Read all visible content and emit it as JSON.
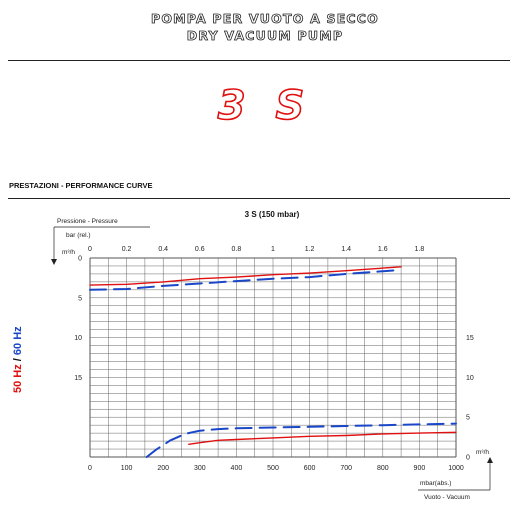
{
  "header": {
    "title_it": "POMPA PER VUOTO A SECCO",
    "title_en": "DRY VACUUM PUMP",
    "model": "3 S"
  },
  "section_title": "PRESTAZIONI - PERFORMANCE CURVE",
  "frequency": {
    "hz50": "50 Hz",
    "separator": "/",
    "hz60": "60 Hz",
    "color50": "#e01010",
    "color60": "#1a47c8"
  },
  "chart_data": {
    "type": "line",
    "title": "3 S (150 mbar)",
    "top_axis": {
      "label_pressure": "Pressione - Pressure",
      "label_unit": "bar (rel.)",
      "ticks": [
        "0",
        "0.2",
        "0.4",
        "0.6",
        "0.8",
        "1",
        "1.2",
        "1.4",
        "1.6",
        "1.8"
      ],
      "range": [
        0,
        2.0
      ]
    },
    "bottom_axis": {
      "label_unit": "mbar(abs.)",
      "label_vacuum": "Vuoto - Vacuum",
      "ticks": [
        "0",
        "100",
        "200",
        "300",
        "400",
        "500",
        "600",
        "700",
        "800",
        "900",
        "1000"
      ],
      "range": [
        0,
        1000
      ]
    },
    "left_axis": {
      "unit": "m³/h",
      "ticks": [
        "0",
        "5",
        "10",
        "15"
      ]
    },
    "right_axis": {
      "unit": "m³/h",
      "ticks": [
        "15",
        "10",
        "5",
        "0"
      ]
    },
    "series": [
      {
        "name": "50 Hz",
        "panel": "pressure",
        "style": "solid",
        "color": "#e01010",
        "x": [
          0,
          0.2,
          0.4,
          0.6,
          0.8,
          1.0,
          1.2,
          1.4,
          1.7
        ],
        "y": [
          3.4,
          3.3,
          3.0,
          2.6,
          2.4,
          2.1,
          1.9,
          1.6,
          1.1
        ]
      },
      {
        "name": "60 Hz",
        "panel": "pressure",
        "style": "dashed",
        "color": "#1a47c8",
        "x": [
          0,
          0.2,
          0.4,
          0.6,
          0.8,
          1.0,
          1.2,
          1.4,
          1.7
        ],
        "y": [
          4.0,
          3.9,
          3.5,
          3.2,
          2.9,
          2.6,
          2.4,
          2.0,
          1.5
        ]
      },
      {
        "name": "50 Hz",
        "panel": "vacuum",
        "style": "solid",
        "color": "#e01010",
        "x": [
          270,
          300,
          350,
          400,
          500,
          600,
          700,
          800,
          900,
          1000
        ],
        "y": [
          1.6,
          1.8,
          2.1,
          2.2,
          2.4,
          2.6,
          2.7,
          2.9,
          3.0,
          3.1
        ]
      },
      {
        "name": "60 Hz",
        "panel": "vacuum",
        "style": "dashed",
        "color": "#1a47c8",
        "x": [
          155,
          180,
          220,
          260,
          300,
          350,
          400,
          500,
          600,
          700,
          800,
          900,
          1000
        ],
        "y": [
          0.0,
          0.9,
          2.1,
          2.9,
          3.3,
          3.5,
          3.6,
          3.7,
          3.8,
          3.9,
          4.0,
          4.1,
          4.2
        ]
      }
    ]
  }
}
